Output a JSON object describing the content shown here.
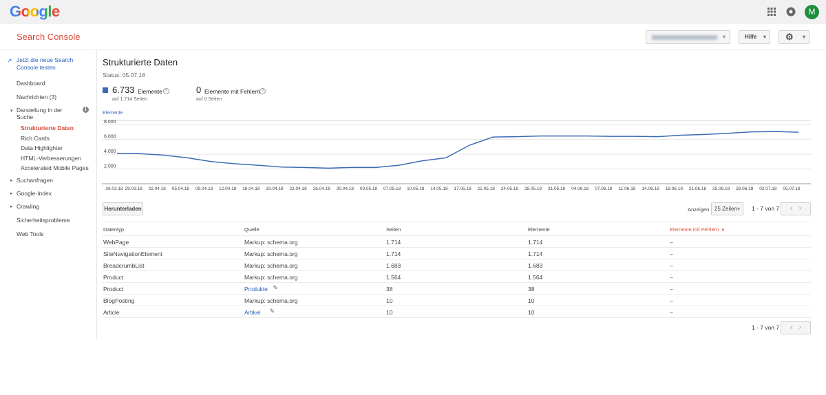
{
  "header": {
    "logo": "Google",
    "avatar": "M"
  },
  "toolbar": {
    "product": "Search Console",
    "help": "Hilfe"
  },
  "sidebar": {
    "new_console": "Jetzt die neue Search Console testen",
    "items": [
      "Dashboard",
      "Nachrichten (3)"
    ],
    "section": "Darstellung in der Suche",
    "subitems": [
      "Strukturierte Daten",
      "Rich Cards",
      "Data Highlighter",
      "HTML-Verbesserungen",
      "Accelerated Mobile Pages"
    ],
    "groups": [
      "Suchanfragen",
      "Google-Index",
      "Crawling"
    ],
    "more": [
      "Sicherheitsprobleme",
      "Web Tools"
    ]
  },
  "main": {
    "title": "Strukturierte Daten",
    "status": "Status: 05.07.18",
    "stats": [
      {
        "value": "6.733",
        "label": "Elemente",
        "sub": "auf 1.714 Seiten"
      },
      {
        "value": "0",
        "label": "Elemente mit Fehlern",
        "sub": "auf 0 Seiten"
      }
    ]
  },
  "chart_data": {
    "type": "line",
    "series": [
      {
        "name": "Elemente",
        "color": "#3b6bb5",
        "values": [
          4100,
          4050,
          3850,
          3500,
          3000,
          2700,
          2500,
          2250,
          2200,
          2100,
          2200,
          2200,
          2500,
          3100,
          3500,
          5200,
          6300,
          6350,
          6450,
          6450,
          6450,
          6400,
          6400,
          6350,
          6550,
          6650,
          6800,
          7000,
          7050,
          6950
        ]
      }
    ],
    "categories": [
      "26.03.18",
      "29.03.18",
      "02.04.18",
      "05.04.18",
      "09.04.18",
      "12.04.18",
      "16.04.18",
      "19.04.18",
      "23.04.18",
      "26.04.18",
      "30.04.18",
      "03.05.18",
      "07.05.18",
      "10.05.18",
      "14.05.18",
      "17.05.18",
      "21.05.18",
      "24.05.18",
      "28.05.18",
      "31.05.18",
      "04.06.18",
      "07.06.18",
      "11.06.18",
      "14.06.18",
      "18.06.18",
      "21.06.18",
      "25.06.18",
      "28.06.18",
      "02.07.18",
      "05.07.18"
    ],
    "ylim": [
      0,
      8500
    ],
    "yticks": [
      {
        "value": 2000,
        "label": "2.000"
      },
      {
        "value": 4000,
        "label": "4.000"
      },
      {
        "value": 6000,
        "label": "6.000"
      },
      {
        "value": 8000,
        "label": "8.000"
      }
    ],
    "grid": true
  },
  "controls": {
    "download": "Herunterladen",
    "show": "Anzeigen",
    "rows": "25 Zeilen",
    "range": "1 - 7 von 7"
  },
  "table": {
    "headers": [
      "Datentyp",
      "Quelle",
      "Seiten",
      "Elemente",
      "Elemente mit Fehlern"
    ],
    "rows": [
      [
        "WebPage",
        "Markup: schema.org",
        "1.714",
        "1.714",
        "–"
      ],
      [
        "SiteNavigationElement",
        "Markup: schema.org",
        "1.714",
        "1.714",
        "–"
      ],
      [
        "BreadcrumbList",
        "Markup: schema.org",
        "1.683",
        "1.683",
        "–"
      ],
      [
        "Product",
        "Markup: schema.org",
        "1.564",
        "1.564",
        "–"
      ],
      [
        "Product",
        "Produkte",
        "38",
        "38",
        "–"
      ],
      [
        "BlogPosting",
        "Markup: schema.org",
        "10",
        "10",
        "–"
      ],
      [
        "Article",
        "Artikel",
        "10",
        "10",
        "–"
      ]
    ]
  }
}
